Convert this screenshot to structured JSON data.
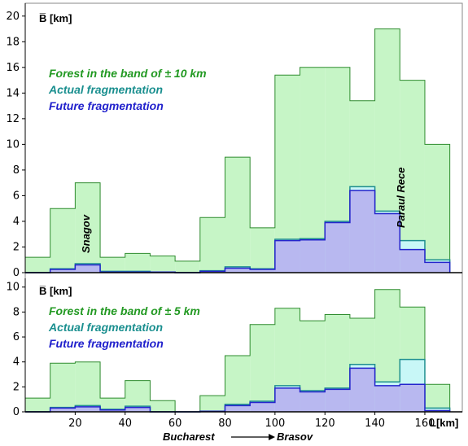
{
  "colors": {
    "forest_fill": "#c6f5c6",
    "forest_stroke": "#2e8b2e",
    "actual_fill": "#c8f7f7",
    "actual_stroke": "#1f8f8f",
    "future_fill": "#b8b8f0",
    "future_stroke": "#2424cc",
    "forest_text": "#229922",
    "actual_text": "#1a8f8f",
    "future_text": "#2020cc",
    "axis": "#000000",
    "panel_border": "#888888"
  },
  "chart_data": [
    {
      "type": "area",
      "step": true,
      "ylabel": "B̅ [km]",
      "ylim": [
        0,
        21
      ],
      "yticks": [
        0,
        2,
        4,
        6,
        8,
        10,
        12,
        14,
        16,
        18,
        20
      ],
      "xlim": [
        0,
        175
      ],
      "bin_edges": [
        0,
        10,
        20,
        30,
        40,
        50,
        60,
        70,
        80,
        90,
        100,
        110,
        120,
        130,
        140,
        150,
        160,
        170
      ],
      "series": [
        {
          "name": "Forest in the band of  ± 10 km",
          "values": [
            1.2,
            5.0,
            7.0,
            1.2,
            1.5,
            1.3,
            0.9,
            4.3,
            9.0,
            3.5,
            15.4,
            16.0,
            16.0,
            13.4,
            19.0,
            15.0,
            10.0
          ]
        },
        {
          "name": "Actual fragmentation",
          "values": [
            0.0,
            0.3,
            0.7,
            0.1,
            0.1,
            0.05,
            0.0,
            0.15,
            0.45,
            0.3,
            2.6,
            2.65,
            4.0,
            6.7,
            4.8,
            2.5,
            1.0
          ]
        },
        {
          "name": "Future fragmentation",
          "values": [
            0.0,
            0.25,
            0.6,
            0.05,
            0.05,
            0.05,
            0.0,
            0.1,
            0.35,
            0.25,
            2.5,
            2.55,
            3.9,
            6.4,
            4.6,
            1.8,
            0.8
          ]
        }
      ],
      "annotations": [
        "Snagov",
        "Paraul Rece"
      ]
    },
    {
      "type": "area",
      "step": true,
      "ylabel": "B̅ [km]",
      "xlabel": "L[km]",
      "ylim": [
        0,
        10.7
      ],
      "yticks": [
        0,
        2,
        4,
        6,
        8,
        10
      ],
      "xlim": [
        0,
        175
      ],
      "xticks": [
        20,
        40,
        60,
        80,
        100,
        120,
        140,
        160
      ],
      "bin_edges": [
        0,
        10,
        20,
        30,
        40,
        50,
        60,
        70,
        80,
        90,
        100,
        110,
        120,
        130,
        140,
        150,
        160,
        170
      ],
      "series": [
        {
          "name": "Forest in the band of  ± 5 km",
          "values": [
            1.1,
            3.9,
            4.0,
            1.1,
            2.5,
            0.9,
            0.0,
            1.3,
            4.5,
            7.0,
            8.3,
            7.3,
            7.8,
            7.5,
            9.8,
            8.4,
            2.2
          ]
        },
        {
          "name": "Actual fragmentation",
          "values": [
            0.0,
            0.35,
            0.5,
            0.2,
            0.45,
            0.0,
            0.0,
            0.05,
            0.6,
            0.85,
            2.1,
            1.7,
            1.9,
            3.8,
            2.4,
            4.2,
            0.3
          ]
        },
        {
          "name": "Future fragmentation",
          "values": [
            0.0,
            0.3,
            0.4,
            0.15,
            0.35,
            0.0,
            0.0,
            0.05,
            0.5,
            0.75,
            1.9,
            1.6,
            1.8,
            3.5,
            2.1,
            2.2,
            0.1
          ]
        }
      ],
      "route": {
        "from": "Bucharest",
        "to": "Brasov"
      }
    }
  ]
}
